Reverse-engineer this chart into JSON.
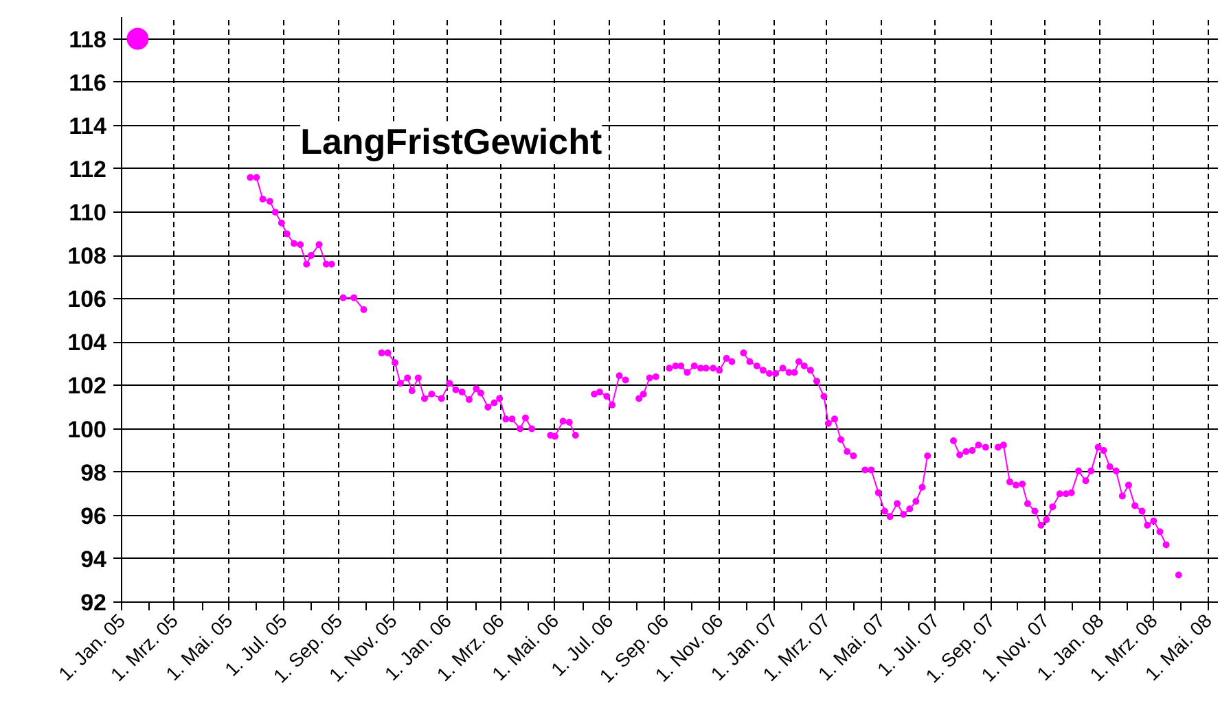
{
  "chart_data": {
    "type": "line",
    "title": "LangFristGewicht",
    "xlim": [
      "2005-01-01",
      "2008-05-12"
    ],
    "ylim": [
      92,
      119
    ],
    "yticks": [
      92,
      94,
      96,
      98,
      100,
      102,
      104,
      106,
      108,
      110,
      112,
      114,
      116,
      118
    ],
    "xticks": [
      {
        "value": "2005-01-01",
        "label": "1. Jan. 05"
      },
      {
        "value": "2005-02-01",
        "label": null
      },
      {
        "value": "2005-03-01",
        "label": "1. Mrz. 05"
      },
      {
        "value": "2005-04-01",
        "label": null
      },
      {
        "value": "2005-05-01",
        "label": "1. Mai. 05"
      },
      {
        "value": "2005-06-01",
        "label": null
      },
      {
        "value": "2005-07-01",
        "label": "1. Jul. 05"
      },
      {
        "value": "2005-08-01",
        "label": null
      },
      {
        "value": "2005-09-01",
        "label": "1. Sep. 05"
      },
      {
        "value": "2005-10-01",
        "label": null
      },
      {
        "value": "2005-11-01",
        "label": "1. Nov. 05"
      },
      {
        "value": "2005-12-01",
        "label": null
      },
      {
        "value": "2006-01-01",
        "label": "1. Jan. 06"
      },
      {
        "value": "2006-02-01",
        "label": null
      },
      {
        "value": "2006-03-01",
        "label": "1. Mrz. 06"
      },
      {
        "value": "2006-04-01",
        "label": null
      },
      {
        "value": "2006-05-01",
        "label": "1. Mai. 06"
      },
      {
        "value": "2006-06-01",
        "label": null
      },
      {
        "value": "2006-07-01",
        "label": "1. Jul. 06"
      },
      {
        "value": "2006-08-01",
        "label": null
      },
      {
        "value": "2006-09-01",
        "label": "1. Sep. 06"
      },
      {
        "value": "2006-10-01",
        "label": null
      },
      {
        "value": "2006-11-01",
        "label": "1. Nov. 06"
      },
      {
        "value": "2006-12-01",
        "label": null
      },
      {
        "value": "2007-01-01",
        "label": "1. Jan. 07"
      },
      {
        "value": "2007-02-01",
        "label": null
      },
      {
        "value": "2007-03-01",
        "label": "1. Mrz. 07"
      },
      {
        "value": "2007-04-01",
        "label": null
      },
      {
        "value": "2007-05-01",
        "label": "1. Mai. 07"
      },
      {
        "value": "2007-06-01",
        "label": null
      },
      {
        "value": "2007-07-01",
        "label": "1. Jul. 07"
      },
      {
        "value": "2007-08-01",
        "label": null
      },
      {
        "value": "2007-09-01",
        "label": "1. Sep. 07"
      },
      {
        "value": "2007-10-01",
        "label": null
      },
      {
        "value": "2007-11-01",
        "label": "1. Nov. 07"
      },
      {
        "value": "2007-12-01",
        "label": null
      },
      {
        "value": "2008-01-01",
        "label": "1. Jan. 08"
      },
      {
        "value": "2008-02-01",
        "label": null
      },
      {
        "value": "2008-03-01",
        "label": "1. Mrz. 08"
      },
      {
        "value": "2008-04-01",
        "label": null
      },
      {
        "value": "2008-05-01",
        "label": "1. Mai. 08"
      }
    ],
    "grid": true,
    "marker": "circle",
    "line_style": "solid",
    "series": [
      {
        "type": "scatter",
        "color": "#ff00ff",
        "x": [
          "2005-01-19"
        ],
        "values": [
          118
        ]
      },
      {
        "color": "#ff00ff",
        "x": [
          "2005-05-25",
          "2005-06-01",
          "2005-06-08",
          "2005-06-16",
          "2005-06-22",
          "2005-06-29",
          "2005-07-05",
          "2005-07-13",
          "2005-07-20",
          "2005-07-27",
          "2005-08-01",
          "2005-08-10",
          "2005-08-18",
          "2005-08-24",
          "2005-08-30",
          "2005-09-06",
          "2005-09-18",
          "2005-09-29",
          "2005-10-09",
          "2005-10-19",
          "2005-10-26",
          "2005-11-03",
          "2005-11-09",
          "2005-11-17",
          "2005-11-22",
          "2005-11-29",
          "2005-12-06",
          "2005-12-14",
          "2005-12-25",
          "2006-01-03",
          "2006-01-10",
          "2006-01-17",
          "2006-01-25",
          "2006-02-02",
          "2006-02-07",
          "2006-02-15",
          "2006-02-22",
          "2006-02-28",
          "2006-03-07",
          "2006-03-14",
          "2006-03-23",
          "2006-03-29",
          "2006-04-05",
          "2006-04-15",
          "2006-04-26",
          "2006-05-01",
          "2006-05-10",
          "2006-05-17",
          "2006-05-24",
          "2006-06-04",
          "2006-06-14",
          "2006-06-20",
          "2006-06-28",
          "2006-07-04",
          "2006-07-12",
          "2006-07-19",
          "2006-07-26",
          "2006-08-03",
          "2006-08-08",
          "2006-08-15",
          "2006-08-22",
          "2006-08-29",
          "2006-09-06",
          "2006-09-13",
          "2006-09-19",
          "2006-09-26",
          "2006-10-04",
          "2006-10-11",
          "2006-10-17",
          "2006-10-25",
          "2006-11-01",
          "2006-11-09",
          "2006-11-15",
          "2006-11-21",
          "2006-11-28",
          "2006-12-05",
          "2006-12-13",
          "2006-12-20",
          "2006-12-27",
          "2007-01-03",
          "2007-01-11",
          "2007-01-18",
          "2007-01-24",
          "2007-01-29",
          "2007-02-04",
          "2007-02-11",
          "2007-02-18",
          "2007-02-26",
          "2007-03-03",
          "2007-03-10",
          "2007-03-17",
          "2007-03-24",
          "2007-03-31",
          "2007-04-06",
          "2007-04-13",
          "2007-04-20",
          "2007-04-28",
          "2007-05-05",
          "2007-05-11",
          "2007-05-19",
          "2007-05-26",
          "2007-06-02",
          "2007-06-09",
          "2007-06-16",
          "2007-06-22",
          "2007-07-06",
          "2007-07-21",
          "2007-07-28",
          "2007-08-04",
          "2007-08-11",
          "2007-08-18",
          "2007-08-26",
          "2007-09-02",
          "2007-09-09",
          "2007-09-15",
          "2007-09-22",
          "2007-09-29",
          "2007-10-06",
          "2007-10-12",
          "2007-10-20",
          "2007-10-27",
          "2007-11-02",
          "2007-11-09",
          "2007-11-17",
          "2007-11-24",
          "2007-11-30",
          "2007-12-08",
          "2007-12-16",
          "2007-12-22",
          "2007-12-30",
          "2008-01-05",
          "2008-01-12",
          "2008-01-19",
          "2008-01-26",
          "2008-02-02",
          "2008-02-09",
          "2008-02-17",
          "2008-02-23",
          "2008-03-01",
          "2008-03-08",
          "2008-03-15",
          "2008-03-22",
          "2008-03-29"
        ],
        "values": [
          111.6,
          111.6,
          110.6,
          110.5,
          110.0,
          109.5,
          109.0,
          108.55,
          108.5,
          107.6,
          108.0,
          108.5,
          107.6,
          107.6,
          null,
          106.05,
          106.05,
          105.5,
          null,
          103.5,
          103.5,
          103.05,
          102.1,
          102.35,
          101.75,
          102.35,
          101.4,
          101.6,
          101.4,
          102.1,
          101.8,
          101.7,
          101.35,
          101.85,
          101.65,
          101.0,
          101.2,
          101.4,
          100.45,
          100.45,
          100.0,
          100.5,
          100.0,
          null,
          99.7,
          99.65,
          100.35,
          100.3,
          99.7,
          null,
          101.6,
          101.7,
          101.5,
          101.1,
          102.45,
          102.25,
          null,
          101.4,
          101.6,
          102.35,
          102.4,
          null,
          102.8,
          102.9,
          102.9,
          102.6,
          102.9,
          102.8,
          102.8,
          102.8,
          102.7,
          103.25,
          103.1,
          null,
          103.5,
          103.1,
          102.9,
          102.7,
          102.55,
          102.55,
          102.8,
          102.6,
          102.6,
          103.1,
          102.9,
          102.7,
          102.2,
          101.5,
          100.25,
          100.45,
          99.5,
          98.95,
          98.75,
          null,
          98.1,
          98.1,
          97.05,
          96.2,
          95.95,
          96.55,
          96.05,
          96.3,
          96.65,
          97.3,
          98.75,
          null,
          99.45,
          98.8,
          98.95,
          99.0,
          99.25,
          99.15,
          null,
          99.15,
          99.25,
          97.55,
          97.4,
          97.45,
          96.55,
          96.2,
          95.55,
          95.8,
          96.4,
          97.0,
          97.0,
          97.05,
          98.05,
          97.6,
          98.05,
          99.15,
          99.0,
          98.25,
          98.05,
          96.9,
          97.4,
          96.45,
          96.2,
          95.55,
          95.75,
          95.25,
          94.65,
          null,
          93.25
        ]
      }
    ]
  }
}
